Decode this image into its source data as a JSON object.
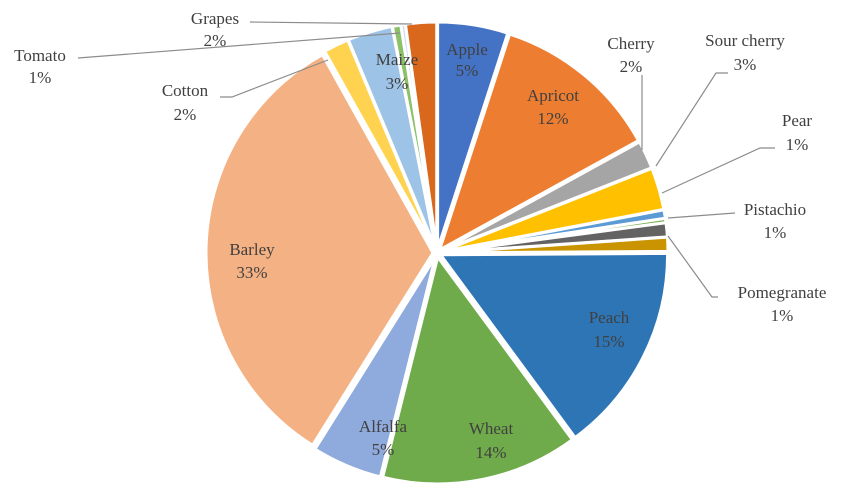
{
  "chart_data": {
    "type": "pie",
    "title": "",
    "start_angle_deg": 0,
    "direction": "clockwise",
    "slices": [
      {
        "label": "Apple",
        "value": 5,
        "display": "5%",
        "color": "#4472c4"
      },
      {
        "label": "Apricot",
        "value": 12,
        "display": "12%",
        "color": "#ed7d31"
      },
      {
        "label": "Cherry",
        "value": 2,
        "display": "2%",
        "color": "#a5a5a5"
      },
      {
        "label": "Sour cherry",
        "value": 3,
        "display": "3%",
        "color": "#ffc000"
      },
      {
        "label": "Pear",
        "value": 0.6,
        "display": "1%",
        "color": "#5b9bd5"
      },
      {
        "label": "",
        "value": 0.3,
        "display": "",
        "color": "#70ad47"
      },
      {
        "label": "Pistachio",
        "value": 1,
        "display": "1%",
        "color": "#636363"
      },
      {
        "label": "Pomegranate",
        "value": 1,
        "display": "1%",
        "color": "#c99400"
      },
      {
        "label": "Peach",
        "value": 15,
        "display": "15%",
        "color": "#2e75b6"
      },
      {
        "label": "Wheat",
        "value": 14,
        "display": "14%",
        "color": "#6fab4a"
      },
      {
        "label": "Alfalfa",
        "value": 5,
        "display": "5%",
        "color": "#8faadc"
      },
      {
        "label": "Barley",
        "value": 33,
        "display": "33%",
        "color": "#f4b183"
      },
      {
        "label": "Cotton",
        "value": 1.8,
        "display": "2%",
        "color": "#ffd34f"
      },
      {
        "label": "Maize",
        "value": 3.2,
        "display": "3%",
        "color": "#9dc3e6"
      },
      {
        "label": "Tomato",
        "value": 0.6,
        "display": "1%",
        "color": "#8cc168"
      },
      {
        "label": "",
        "value": 0.3,
        "display": "",
        "color": "#c5d9f1"
      },
      {
        "label": "Grapes",
        "value": 2.2,
        "display": "2%",
        "color": "#d9671c"
      }
    ],
    "legend": "none",
    "data_labels": "category name and percentage"
  },
  "labels": {
    "apple": {
      "name": "Apple",
      "pct": "5%"
    },
    "apricot": {
      "name": "Apricot",
      "pct": "12%"
    },
    "cherry": {
      "name": "Cherry",
      "pct": "2%"
    },
    "sour_cherry": {
      "name": "Sour cherry",
      "pct": "3%"
    },
    "pear": {
      "name": "Pear",
      "pct": "1%"
    },
    "pistachio": {
      "name": "Pistachio",
      "pct": "1%"
    },
    "pomegranate": {
      "name": "Pomegranate",
      "pct": "1%"
    },
    "peach": {
      "name": "Peach",
      "pct": "15%"
    },
    "wheat": {
      "name": "Wheat",
      "pct": "14%"
    },
    "alfalfa": {
      "name": "Alfalfa",
      "pct": "5%"
    },
    "barley": {
      "name": "Barley",
      "pct": "33%"
    },
    "cotton": {
      "name": "Cotton",
      "pct": "2%"
    },
    "maize": {
      "name": "Maize",
      "pct": "3%"
    },
    "tomato": {
      "name": "Tomato",
      "pct": "1%"
    },
    "grapes": {
      "name": "Grapes",
      "pct": "2%"
    }
  }
}
